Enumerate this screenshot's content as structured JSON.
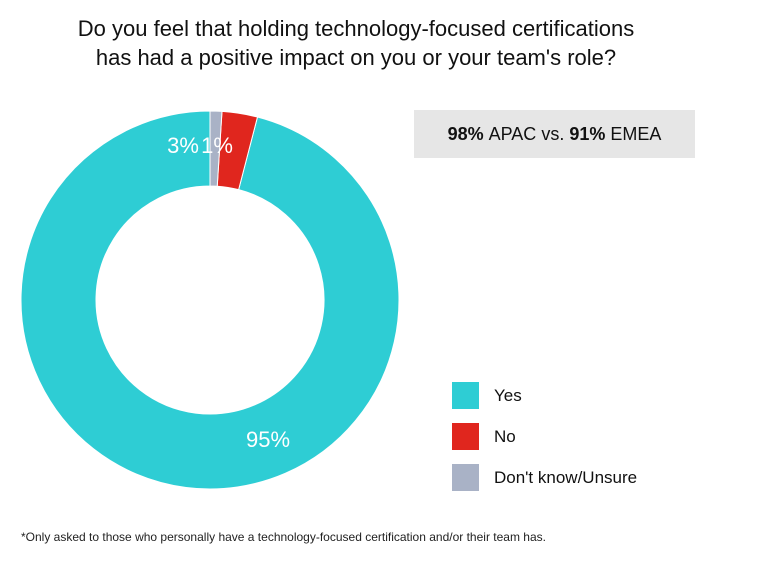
{
  "chart_data": {
    "type": "pie",
    "title_lines": [
      "Do you feel that holding technology-focused certifications",
      "has had a positive impact on you or your team's role?"
    ],
    "slices": [
      {
        "label": "Yes",
        "value": 95,
        "value_label": "95%",
        "color": "#2ecdd4"
      },
      {
        "label": "No",
        "value": 3,
        "value_label": "3%",
        "color": "#e0261e"
      },
      {
        "label": "Don't know/Unsure",
        "value": 1,
        "value_label": "1%",
        "color": "#a9b2c6"
      }
    ],
    "legend_position": "bottom-right",
    "callout": {
      "a_value": "98%",
      "a_label": "APAC",
      "separator": "vs.",
      "b_value": "91%",
      "b_label": "EMEA"
    },
    "footnote": "*Only asked to those who personally have a technology-focused certification and/or their team has."
  }
}
